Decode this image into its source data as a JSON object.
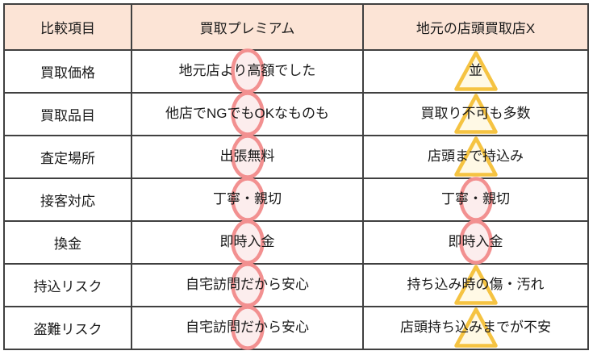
{
  "table": {
    "headers": [
      "比較項目",
      "買取プレミアム",
      "地元の店頭買取店X"
    ],
    "rows": [
      {
        "item": "買取価格",
        "premium": {
          "text": "地元店より高額でした",
          "mark": "circle"
        },
        "local": {
          "text": "並",
          "mark": "triangle"
        }
      },
      {
        "item": "買取品目",
        "premium": {
          "text": "他店でNGでもOKなものも",
          "mark": "circle"
        },
        "local": {
          "text": "買取り不可も多数",
          "mark": "triangle"
        }
      },
      {
        "item": "査定場所",
        "premium": {
          "text": "出張無料",
          "mark": "circle"
        },
        "local": {
          "text": "店頭まで持込み",
          "mark": "triangle"
        }
      },
      {
        "item": "接客対応",
        "premium": {
          "text": "丁寧・親切",
          "mark": "circle"
        },
        "local": {
          "text": "丁寧・親切",
          "mark": "circle"
        }
      },
      {
        "item": "換金",
        "premium": {
          "text": "即時入金",
          "mark": "circle"
        },
        "local": {
          "text": "即時入金",
          "mark": "circle"
        }
      },
      {
        "item": "持込リスク",
        "premium": {
          "text": "自宅訪問だから安心",
          "mark": "circle"
        },
        "local": {
          "text": "持ち込み時の傷・汚れ",
          "mark": "triangle"
        }
      },
      {
        "item": "盗難リスク",
        "premium": {
          "text": "自宅訪問だから安心",
          "mark": "circle"
        },
        "local": {
          "text": "店頭持ち込みまでが不安",
          "mark": "triangle"
        }
      }
    ]
  },
  "colors": {
    "header_bg": "#FCE4D6",
    "border": "#404040",
    "circle_stroke": "#F29090",
    "triangle_stroke": "#F5C342"
  }
}
